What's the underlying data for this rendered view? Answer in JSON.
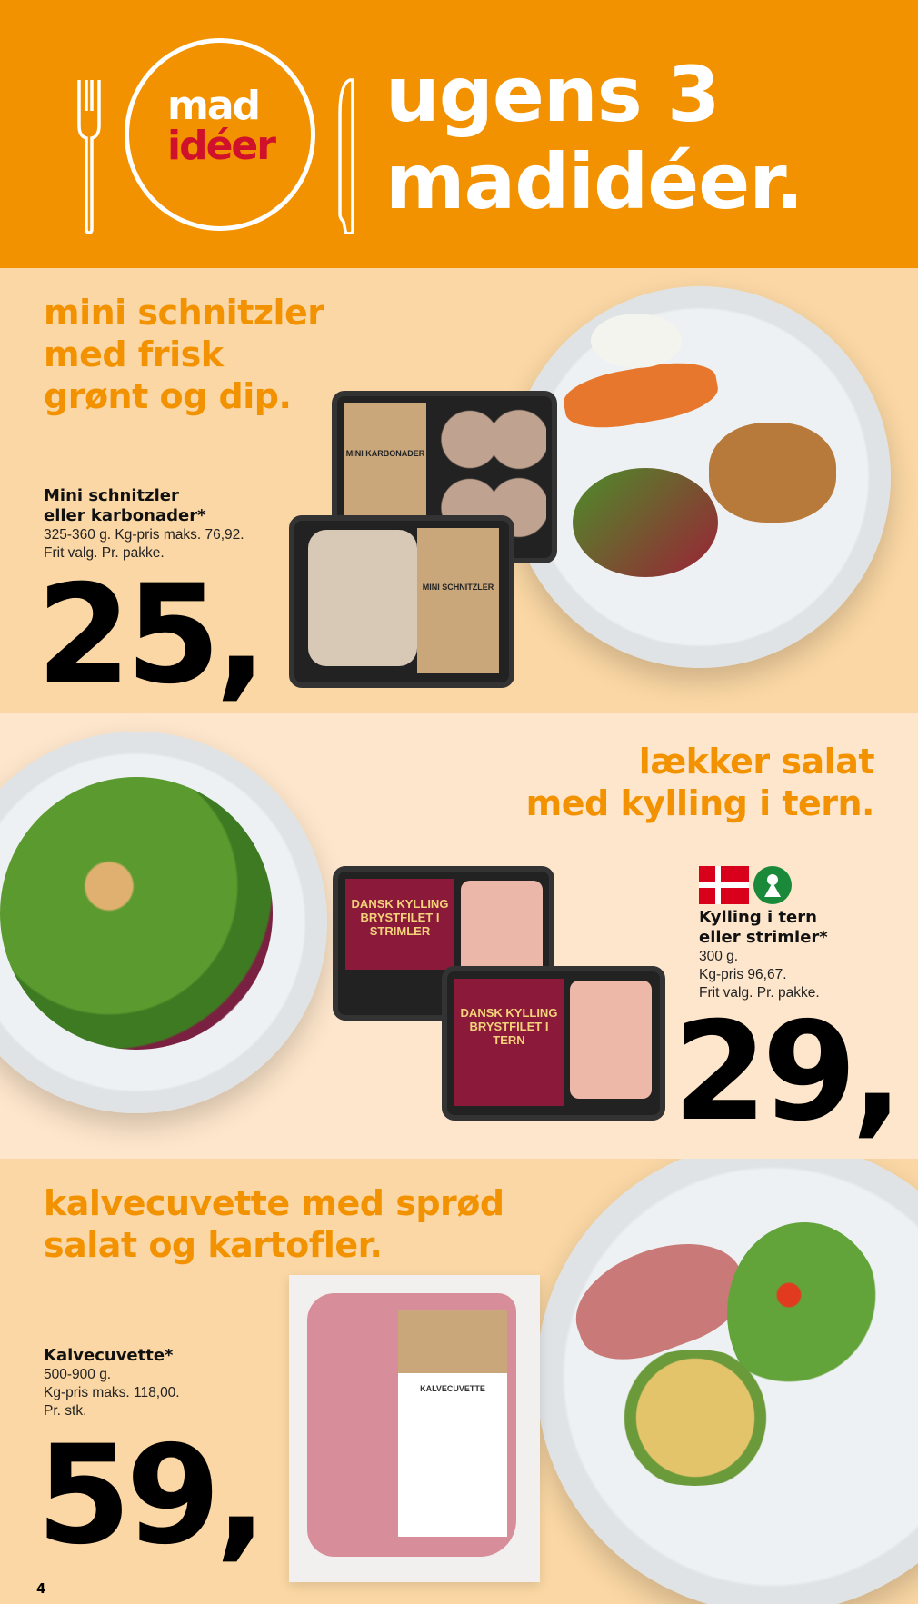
{
  "header": {
    "logo_line1": "mad",
    "logo_line2": "idéer",
    "title_line1": "ugens 3",
    "title_line2": "madidéer."
  },
  "colors": {
    "orange": "#f39200",
    "logo_red": "#d0112b",
    "peach": "#fad7a4"
  },
  "sections": [
    {
      "headline": [
        "mini schnitzler",
        "med frisk",
        "grønt og dip."
      ],
      "product_name": [
        "Mini schnitzler",
        "eller karbonader*"
      ],
      "details": [
        "325-360 g. Kg-pris maks. 76,92.",
        "Frit valg. Pr. pakke."
      ],
      "price": "25,",
      "packs": [
        "MINI KARBONADER",
        "MINI SCHNITZLER"
      ]
    },
    {
      "headline": [
        "lækker salat",
        "med kylling i tern."
      ],
      "badges": [
        "danish-flag-icon",
        "danish-meat-keyhole-icon"
      ],
      "product_name": [
        "Kylling i tern",
        "eller strimler*"
      ],
      "details": [
        "300 g.",
        "Kg-pris 96,67.",
        "Frit valg. Pr. pakke."
      ],
      "price": "29,",
      "packs": [
        "DANSK KYLLING BRYSTFILET I STRIMLER",
        "DANSK KYLLING BRYSTFILET I TERN"
      ]
    },
    {
      "headline": [
        "kalvecuvette med sprød",
        "salat og kartofler."
      ],
      "product_name": [
        "Kalvecuvette*"
      ],
      "details": [
        "500-900 g.",
        "Kg-pris maks. 118,00.",
        "Pr. stk."
      ],
      "price": "59,",
      "packs": [
        "KALVECUVETTE"
      ]
    }
  ],
  "page_number": "4"
}
